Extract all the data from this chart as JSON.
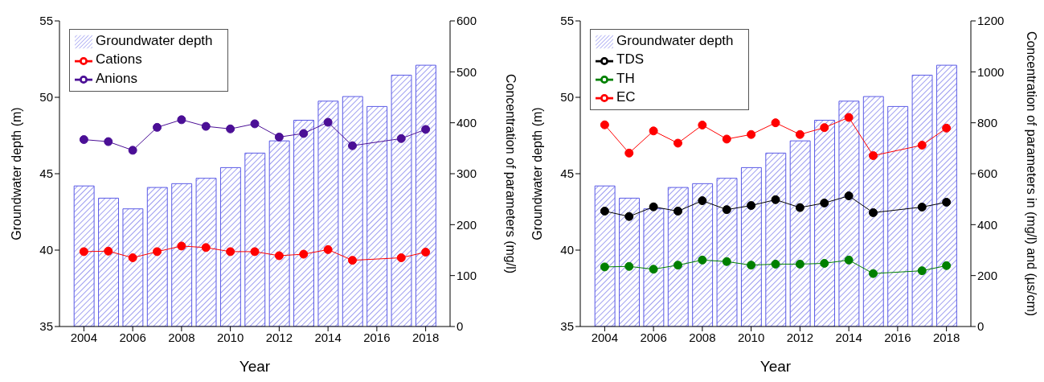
{
  "chart_data": [
    {
      "type": "bar",
      "x": [
        2004,
        2005,
        2006,
        2007,
        2008,
        2009,
        2010,
        2011,
        2012,
        2013,
        2014,
        2015,
        2016,
        2017,
        2018
      ],
      "xlabel": "Year",
      "ylabel": "Groundwater depth (m)",
      "y2label": "Concentration of parameters (mg/l)",
      "xlim": [
        2003,
        2019
      ],
      "xticks": [
        2004,
        2006,
        2008,
        2010,
        2012,
        2014,
        2016,
        2018
      ],
      "ylim": [
        35,
        55
      ],
      "yticks": [
        35,
        40,
        45,
        50,
        55
      ],
      "y2lim": [
        0,
        600
      ],
      "y2ticks": [
        0,
        100,
        200,
        300,
        400,
        500,
        600
      ],
      "legend": "top left",
      "marker": "circle",
      "grid": false,
      "series": [
        {
          "name": "Groundwater depth",
          "color": "#5a5ae6",
          "values": [
            44.2,
            43.4,
            42.7,
            44.1,
            44.35,
            44.7,
            45.4,
            46.35,
            47.15,
            48.5,
            49.75,
            50.05,
            49.4,
            51.45,
            52.1
          ]
        },
        {
          "name": "Cations",
          "type": "line",
          "axis": "y2",
          "color": "#ff0000",
          "x": [
            2004,
            2005,
            2006,
            2007,
            2008,
            2009,
            2010,
            2011,
            2012,
            2013,
            2014,
            2015,
            2017,
            2018
          ],
          "values": [
            147,
            148,
            135,
            147,
            158,
            155,
            147,
            147,
            139,
            142,
            151,
            130,
            135,
            146
          ]
        },
        {
          "name": "Anions",
          "type": "line",
          "axis": "y2",
          "color": "#4b0f96",
          "x": [
            2004,
            2005,
            2006,
            2007,
            2008,
            2009,
            2010,
            2011,
            2012,
            2013,
            2014,
            2015,
            2017,
            2018
          ],
          "values": [
            367,
            363,
            346,
            391,
            406,
            393,
            388,
            398,
            372,
            379,
            401,
            355,
            369,
            387
          ]
        }
      ]
    },
    {
      "type": "bar",
      "x": [
        2004,
        2005,
        2006,
        2007,
        2008,
        2009,
        2010,
        2011,
        2012,
        2013,
        2014,
        2015,
        2016,
        2017,
        2018
      ],
      "xlabel": "Year",
      "ylabel": "Groundwater depth (m)",
      "y2label": "Concentration of parameters in (mg/l) and (µs/cm)",
      "xlim": [
        2003,
        2019
      ],
      "xticks": [
        2004,
        2006,
        2008,
        2010,
        2012,
        2014,
        2016,
        2018
      ],
      "ylim": [
        35,
        55
      ],
      "yticks": [
        35,
        40,
        45,
        50,
        55
      ],
      "y2lim": [
        0,
        1200
      ],
      "y2ticks": [
        0,
        200,
        400,
        600,
        800,
        1000,
        1200
      ],
      "legend": "top left",
      "marker": "circle",
      "grid": false,
      "series": [
        {
          "name": "Groundwater depth",
          "color": "#5a5ae6",
          "values": [
            44.2,
            43.4,
            42.7,
            44.1,
            44.35,
            44.7,
            45.4,
            46.35,
            47.15,
            48.5,
            49.75,
            50.05,
            49.4,
            51.45,
            52.1
          ]
        },
        {
          "name": "TDS",
          "type": "line",
          "axis": "y2",
          "color": "#000000",
          "x": [
            2004,
            2005,
            2006,
            2007,
            2008,
            2009,
            2010,
            2011,
            2012,
            2013,
            2014,
            2015,
            2017,
            2018
          ],
          "values": [
            453,
            432,
            470,
            453,
            494,
            459,
            475,
            498,
            467,
            485,
            513,
            447,
            469,
            488
          ]
        },
        {
          "name": "TH",
          "type": "line",
          "axis": "y2",
          "color": "#008000",
          "x": [
            2004,
            2005,
            2006,
            2007,
            2008,
            2009,
            2010,
            2011,
            2012,
            2013,
            2014,
            2015,
            2017,
            2018
          ],
          "values": [
            234,
            236,
            225,
            241,
            261,
            255,
            241,
            245,
            245,
            248,
            261,
            208,
            219,
            239
          ]
        },
        {
          "name": "EC",
          "type": "line",
          "axis": "y2",
          "color": "#ff0000",
          "x": [
            2004,
            2005,
            2006,
            2007,
            2008,
            2009,
            2010,
            2011,
            2012,
            2013,
            2014,
            2015,
            2017,
            2018
          ],
          "values": [
            792,
            681,
            768,
            720,
            791,
            736,
            754,
            800,
            754,
            781,
            821,
            671,
            712,
            779
          ]
        }
      ]
    }
  ]
}
